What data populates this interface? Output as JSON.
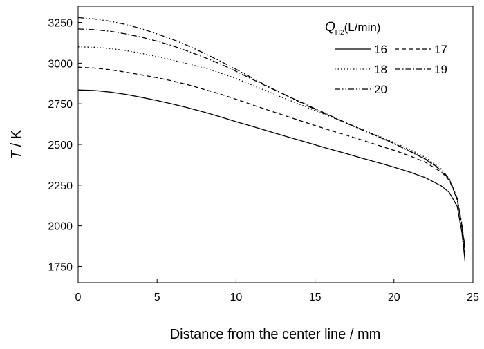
{
  "chart_data": {
    "type": "line",
    "xlabel": "Distance from the center line / mm",
    "ylabel_italic": "T",
    "ylabel_rest": " / K",
    "xlim": [
      0,
      25
    ],
    "ylim": [
      1650,
      3350
    ],
    "xticks": [
      0,
      5,
      10,
      15,
      20,
      25
    ],
    "yticks": [
      1750,
      2000,
      2250,
      2500,
      2750,
      3000,
      3250
    ],
    "grid": false,
    "legend": {
      "title_q": "Q",
      "title_sub": "H2",
      "title_unit": "(L/min)",
      "placement": "top-right"
    },
    "series": [
      {
        "name": "16",
        "dash": "solid",
        "points": [
          [
            0,
            2835
          ],
          [
            1,
            2832
          ],
          [
            2,
            2822
          ],
          [
            3,
            2808
          ],
          [
            4,
            2790
          ],
          [
            5,
            2770
          ],
          [
            6,
            2748
          ],
          [
            7,
            2724
          ],
          [
            8,
            2698
          ],
          [
            9,
            2670
          ],
          [
            10,
            2640
          ],
          [
            11,
            2612
          ],
          [
            12,
            2583
          ],
          [
            13,
            2554
          ],
          [
            14,
            2526
          ],
          [
            15,
            2498
          ],
          [
            16,
            2470
          ],
          [
            17,
            2443
          ],
          [
            18,
            2415
          ],
          [
            19,
            2388
          ],
          [
            20,
            2360
          ],
          [
            21,
            2330
          ],
          [
            22,
            2295
          ],
          [
            23,
            2245
          ],
          [
            23.5,
            2205
          ],
          [
            24,
            2120
          ],
          [
            24.3,
            1960
          ],
          [
            24.5,
            1780
          ]
        ]
      },
      {
        "name": "17",
        "dash": "dashed",
        "points": [
          [
            0,
            2975
          ],
          [
            1,
            2970
          ],
          [
            2,
            2960
          ],
          [
            3,
            2945
          ],
          [
            4,
            2928
          ],
          [
            5,
            2910
          ],
          [
            6,
            2890
          ],
          [
            7,
            2866
          ],
          [
            8,
            2838
          ],
          [
            9,
            2810
          ],
          [
            10,
            2778
          ],
          [
            11,
            2745
          ],
          [
            12,
            2712
          ],
          [
            13,
            2680
          ],
          [
            14,
            2648
          ],
          [
            15,
            2616
          ],
          [
            16,
            2586
          ],
          [
            17,
            2556
          ],
          [
            18,
            2526
          ],
          [
            19,
            2495
          ],
          [
            20,
            2464
          ],
          [
            21,
            2430
          ],
          [
            22,
            2390
          ],
          [
            23,
            2330
          ],
          [
            23.5,
            2280
          ],
          [
            24,
            2170
          ],
          [
            24.3,
            2000
          ],
          [
            24.5,
            1820
          ]
        ]
      },
      {
        "name": "18",
        "dash": "dotted",
        "points": [
          [
            0,
            3100
          ],
          [
            1,
            3098
          ],
          [
            2,
            3090
          ],
          [
            3,
            3078
          ],
          [
            4,
            3060
          ],
          [
            5,
            3040
          ],
          [
            6,
            3018
          ],
          [
            7,
            2995
          ],
          [
            8,
            2970
          ],
          [
            9,
            2940
          ],
          [
            10,
            2905
          ],
          [
            11,
            2866
          ],
          [
            12,
            2826
          ],
          [
            13,
            2786
          ],
          [
            14,
            2748
          ],
          [
            15,
            2708
          ],
          [
            16,
            2670
          ],
          [
            17,
            2630
          ],
          [
            18,
            2592
          ],
          [
            19,
            2553
          ],
          [
            20,
            2512
          ],
          [
            21,
            2468
          ],
          [
            22,
            2420
          ],
          [
            23,
            2350
          ],
          [
            23.5,
            2290
          ],
          [
            24,
            2160
          ],
          [
            24.3,
            1990
          ],
          [
            24.5,
            1840
          ]
        ]
      },
      {
        "name": "19",
        "dash": "dashdot",
        "points": [
          [
            0,
            3210
          ],
          [
            1,
            3206
          ],
          [
            2,
            3196
          ],
          [
            3,
            3180
          ],
          [
            4,
            3160
          ],
          [
            5,
            3135
          ],
          [
            6,
            3106
          ],
          [
            7,
            3072
          ],
          [
            8,
            3035
          ],
          [
            9,
            2995
          ],
          [
            10,
            2950
          ],
          [
            11,
            2902
          ],
          [
            12,
            2855
          ],
          [
            13,
            2810
          ],
          [
            14,
            2765
          ],
          [
            15,
            2720
          ],
          [
            16,
            2676
          ],
          [
            17,
            2632
          ],
          [
            18,
            2590
          ],
          [
            19,
            2548
          ],
          [
            20,
            2505
          ],
          [
            21,
            2458
          ],
          [
            22,
            2408
          ],
          [
            23,
            2340
          ],
          [
            23.5,
            2285
          ],
          [
            24,
            2160
          ],
          [
            24.3,
            2000
          ],
          [
            24.5,
            1850
          ]
        ]
      },
      {
        "name": "20",
        "dash": "dashdotdot",
        "points": [
          [
            0,
            3280
          ],
          [
            1,
            3272
          ],
          [
            2,
            3258
          ],
          [
            3,
            3238
          ],
          [
            4,
            3212
          ],
          [
            5,
            3180
          ],
          [
            6,
            3145
          ],
          [
            7,
            3105
          ],
          [
            8,
            3060
          ],
          [
            9,
            3012
          ],
          [
            10,
            2962
          ],
          [
            11,
            2910
          ],
          [
            12,
            2858
          ],
          [
            13,
            2810
          ],
          [
            14,
            2762
          ],
          [
            15,
            2716
          ],
          [
            16,
            2672
          ],
          [
            17,
            2630
          ],
          [
            18,
            2588
          ],
          [
            19,
            2548
          ],
          [
            20,
            2506
          ],
          [
            21,
            2460
          ],
          [
            22,
            2410
          ],
          [
            23,
            2345
          ],
          [
            23.5,
            2290
          ],
          [
            24,
            2170
          ],
          [
            24.3,
            2010
          ],
          [
            24.5,
            1860
          ]
        ]
      }
    ]
  }
}
